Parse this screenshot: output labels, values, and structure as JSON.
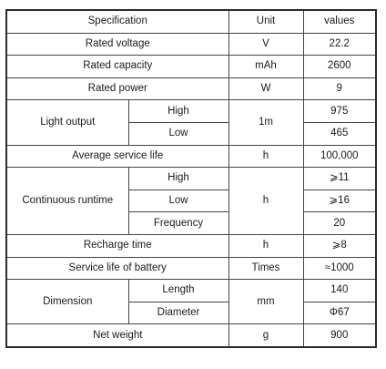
{
  "table": {
    "header": {
      "spec": "Specification",
      "unit": "Unit",
      "values": "values"
    },
    "rows": {
      "rated_voltage": {
        "label": "Rated voltage",
        "unit": "V",
        "value": "22.2"
      },
      "rated_capacity": {
        "label": "Rated capacity",
        "unit": "mAh",
        "value": "2600"
      },
      "rated_power": {
        "label": "Rated power",
        "unit": "W",
        "value": "9"
      },
      "light_output": {
        "label": "Light output",
        "unit": "1m",
        "high_label": "High",
        "high_value": "975",
        "low_label": "Low",
        "low_value": "465"
      },
      "avg_service_life": {
        "label": "Average service life",
        "unit": "h",
        "value": "100,000"
      },
      "continuous_runtime": {
        "label": "Continuous runtime",
        "unit": "h",
        "high_label": "High",
        "high_value": "⩾11",
        "low_label": "Low",
        "low_value": "⩾16",
        "freq_label": "Frequency",
        "freq_value": "20"
      },
      "recharge_time": {
        "label": "Recharge time",
        "unit": "h",
        "value": "⩾8"
      },
      "battery_life": {
        "label": "Service life of battery",
        "unit": "Times",
        "value": "≈1000"
      },
      "dimension": {
        "label": "Dimension",
        "unit": "mm",
        "length_label": "Length",
        "length_value": "140",
        "diameter_label": "Diameter",
        "diameter_value": "Φ67"
      },
      "net_weight": {
        "label": "Net weight",
        "unit": "g",
        "value": "900"
      }
    }
  }
}
